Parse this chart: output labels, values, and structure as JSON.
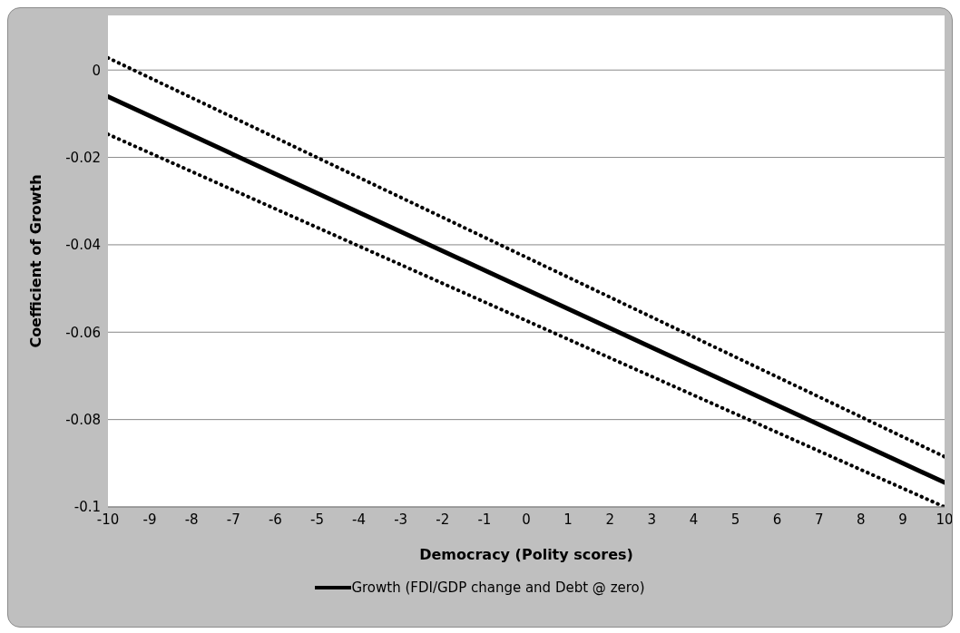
{
  "chart_data": {
    "type": "line",
    "xlabel": "Democracy (Polity scores)",
    "ylabel": "Coefficient of Growth",
    "x": [
      -10,
      10
    ],
    "series": [
      {
        "name": "Growth (FDI/GDP change and Debt @ zero)",
        "color": "#000000",
        "values": [
          -0.0061,
          -0.0944
        ]
      },
      {
        "color": "#000000",
        "values": [
          0.0028,
          -0.0885
        ],
        "line_style": "dotted"
      },
      {
        "color": "#000000",
        "values": [
          -0.0147,
          -0.1
        ],
        "line_style": "dotted"
      }
    ],
    "xlim": [
      -10,
      10
    ],
    "xticks": [
      -10,
      -9,
      -8,
      -7,
      -6,
      -5,
      -4,
      -3,
      -2,
      -1,
      0,
      1,
      2,
      3,
      4,
      5,
      6,
      7,
      8,
      9,
      10
    ],
    "ylim": [
      -0.1,
      0.0125
    ],
    "yticks": [
      -0.1,
      -0.08,
      -0.06,
      -0.04,
      -0.02,
      0
    ],
    "grid": "y",
    "legend": "bottom",
    "marker": "none",
    "line_style": "solid"
  }
}
